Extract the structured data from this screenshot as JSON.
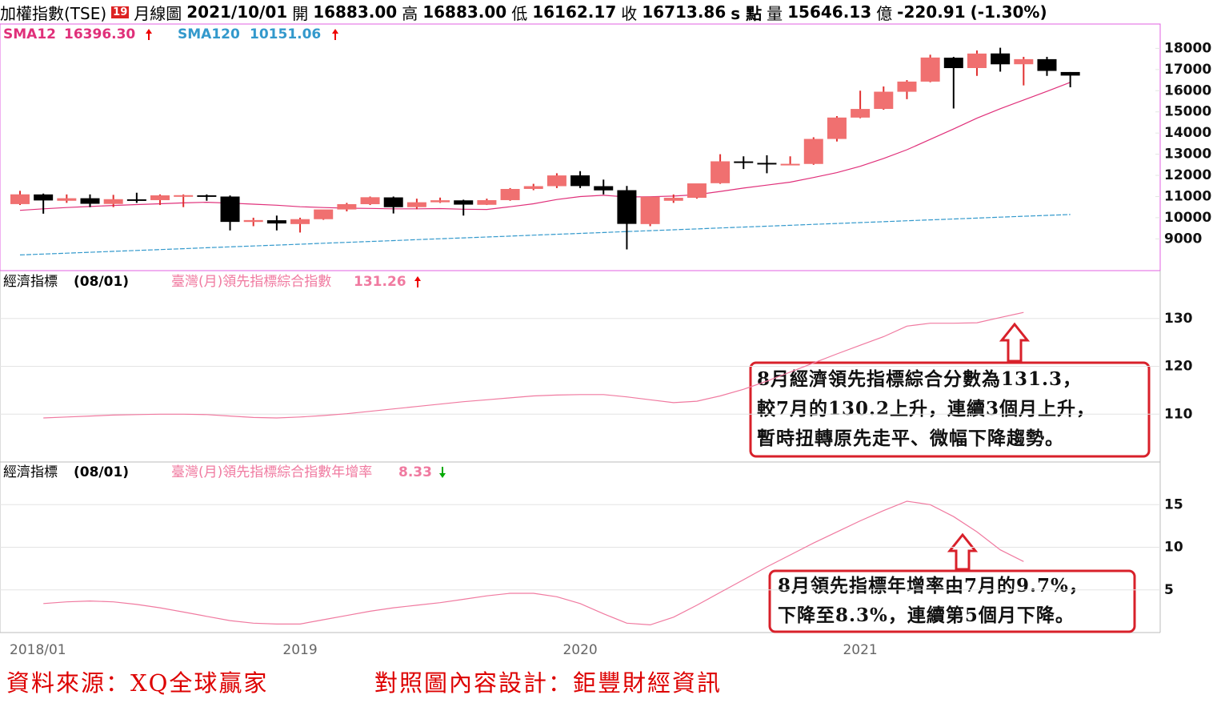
{
  "header": {
    "name": "加權指數(TSE)",
    "badge": "19",
    "period": "月線圖",
    "date": "2021/10/01",
    "open_label": "開",
    "open": "16883.00",
    "high_label": "高",
    "high": "16883.00",
    "low_label": "低",
    "low": "16162.17",
    "close_label": "收",
    "close": "16713.86",
    "close_unit": "s 點",
    "volume_label": "量",
    "volume": "15646.13",
    "volume_unit": "億",
    "change": "-220.91",
    "change_pct": "(-1.30%)"
  },
  "chart_data": [
    {
      "type": "candlestick",
      "up_color": "#f07070",
      "down_color": "#000000",
      "open": [
        10643,
        11100,
        10800,
        10920,
        10650,
        10870,
        10830,
        11050,
        11060,
        11000,
        9800,
        9880,
        9700,
        9930,
        10390,
        10640,
        10960,
        10500,
        10730,
        10820,
        10610,
        10830,
        11360,
        11490,
        12000,
        11490,
        11300,
        9700,
        10800,
        10940,
        11630,
        12660,
        12590,
        12520,
        12540,
        13720,
        14730,
        15140,
        15950,
        16430,
        17560,
        17070,
        17760,
        17250,
        17490,
        16883
      ],
      "high": [
        11270,
        11140,
        11100,
        11100,
        11080,
        11180,
        11100,
        11100,
        11100,
        11050,
        10000,
        10100,
        10000,
        10300,
        10700,
        11000,
        11000,
        10900,
        10950,
        10850,
        10900,
        11400,
        11600,
        12100,
        12200,
        11800,
        11500,
        10900,
        11100,
        11600,
        13000,
        12900,
        12950,
        12900,
        13800,
        14800,
        16000,
        16200,
        16500,
        17700,
        17600,
        17900,
        18030,
        17600,
        17600,
        16883
      ],
      "low": [
        10600,
        10190,
        10700,
        10500,
        10500,
        10700,
        10600,
        10500,
        10800,
        9400,
        9600,
        9400,
        9300,
        9900,
        10300,
        10600,
        10200,
        10400,
        10700,
        10100,
        10600,
        10800,
        11300,
        11400,
        11400,
        11100,
        8500,
        9600,
        10700,
        10900,
        11600,
        12300,
        12100,
        12500,
        12500,
        13600,
        14700,
        15100,
        15600,
        16400,
        15160,
        16700,
        16900,
        16250,
        16700,
        16162.17
      ],
      "close": [
        11104,
        10815,
        10919,
        10658,
        10875,
        10837,
        11057,
        11064,
        11006,
        9802,
        9888,
        9727,
        9932,
        10389,
        10641,
        10967,
        10498,
        10730,
        10823,
        10618,
        10829,
        11358,
        11490,
        11997,
        11495,
        11292,
        9708,
        10992,
        10940,
        11621,
        12664,
        12591,
        12516,
        12546,
        13722,
        14732,
        15138,
        15953,
        16431,
        17567,
        17068,
        17755,
        17247,
        17490,
        16935,
        16713.86
      ],
      "series": [
        {
          "name": "SMA12",
          "color": "#e0307a",
          "last_label": "16396.30",
          "values": [
            10350,
            10420,
            10480,
            10530,
            10580,
            10620,
            10660,
            10700,
            10730,
            10690,
            10640,
            10590,
            10520,
            10480,
            10450,
            10440,
            10420,
            10420,
            10430,
            10400,
            10390,
            10520,
            10660,
            10860,
            11000,
            11060,
            10980,
            10990,
            11020,
            11090,
            11240,
            11400,
            11540,
            11680,
            11900,
            12130,
            12430,
            12800,
            13210,
            13700,
            14190,
            14700,
            15150,
            15560,
            15970,
            16396.3
          ]
        },
        {
          "name": "SMA120",
          "color": "#3399cc",
          "last_label": "10151.06",
          "values": [
            8240,
            8282,
            8325,
            8367,
            8410,
            8452,
            8495,
            8537,
            8580,
            8622,
            8665,
            8707,
            8750,
            8792,
            8835,
            8877,
            8920,
            8962,
            9005,
            9047,
            9090,
            9132,
            9175,
            9217,
            9260,
            9302,
            9345,
            9387,
            9430,
            9472,
            9515,
            9557,
            9600,
            9642,
            9685,
            9727,
            9770,
            9812,
            9855,
            9897,
            9940,
            9982,
            10025,
            10067,
            10110,
            10151.06
          ]
        }
      ],
      "ylim": [
        7500,
        19150
      ],
      "yticks": [
        9000,
        10000,
        11000,
        12000,
        13000,
        14000,
        15000,
        16000,
        17000,
        18000
      ],
      "grid": false
    },
    {
      "type": "line",
      "label": "經濟指標",
      "date": "(08/01)",
      "series": [
        {
          "name": "臺灣(月)領先指標綜合指數",
          "color": "#f07aa0",
          "values": [
            null,
            109.2,
            109.4,
            109.6,
            109.8,
            109.9,
            110.0,
            110.0,
            109.9,
            109.6,
            109.3,
            109.2,
            109.4,
            109.7,
            110.1,
            110.6,
            111.1,
            111.6,
            112.1,
            112.6,
            113.0,
            113.4,
            113.8,
            114.0,
            114.1,
            114.1,
            113.6,
            113.0,
            112.4,
            112.7,
            113.8,
            115.2,
            116.9,
            118.8,
            120.7,
            122.6,
            124.4,
            126.2,
            128.4,
            129.0,
            129.0,
            129.1,
            130.2,
            131.26,
            null,
            null
          ]
        }
      ],
      "ylim": [
        100,
        140
      ],
      "yticks": [
        110,
        120,
        130
      ],
      "grid": true,
      "annotation": [
        "8月經濟領先指標綜合分數為131.3，",
        "較7月的130.2上升，連續3個月上升，",
        "暫時扭轉原先走平、微幅下降趨勢。"
      ]
    },
    {
      "type": "line",
      "label": "經濟指標",
      "date": "(08/01)",
      "series": [
        {
          "name": "臺灣(月)領先指標綜合指數年增率",
          "color": "#f07aa0",
          "values": [
            null,
            3.4,
            3.6,
            3.7,
            3.6,
            3.3,
            2.9,
            2.4,
            1.9,
            1.4,
            1.1,
            1.0,
            1.0,
            1.5,
            2.0,
            2.5,
            2.9,
            3.2,
            3.5,
            3.9,
            4.3,
            4.6,
            4.6,
            4.2,
            3.4,
            2.2,
            1.1,
            0.9,
            1.8,
            3.2,
            4.7,
            6.2,
            7.7,
            9.1,
            10.5,
            11.8,
            13.1,
            14.3,
            15.4,
            15.0,
            13.6,
            11.8,
            9.7,
            8.33,
            null,
            null
          ]
        }
      ],
      "ylim": [
        0,
        20
      ],
      "yticks": [
        5,
        10,
        15
      ],
      "grid": true,
      "categories": [
        "2018/01",
        null,
        null,
        null,
        null,
        null,
        null,
        null,
        null,
        null,
        null,
        null,
        "2019",
        null,
        null,
        null,
        null,
        null,
        null,
        null,
        null,
        null,
        null,
        null,
        "2020",
        null,
        null,
        null,
        null,
        null,
        null,
        null,
        null,
        null,
        null,
        null,
        "2021",
        null,
        null,
        null,
        null,
        null,
        null,
        null,
        null,
        null
      ],
      "annotation": [
        "8月領先指標年增率由7月的9.7%，",
        "下降至8.3%，連續第5個月下降。"
      ]
    }
  ],
  "footer": {
    "source": "資料來源：XQ全球贏家",
    "design": "對照圖內容設計：鉅豐財經資訊"
  }
}
